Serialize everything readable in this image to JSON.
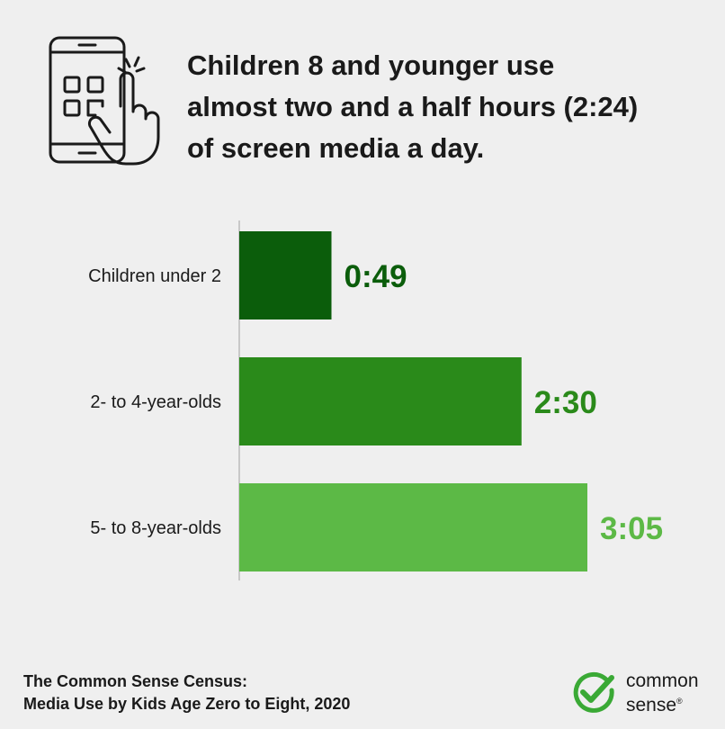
{
  "header": {
    "icon": "tablet-touch-icon",
    "headline": [
      "Children 8 and younger use",
      "almost two and a half hours (2:24)",
      "of screen media a day."
    ]
  },
  "chart_data": {
    "type": "bar",
    "orientation": "horizontal",
    "title": "Children 8 and younger use almost two and a half hours (2:24) of screen media a day.",
    "unit": "hours:minutes per day",
    "categories": [
      "Children under 2",
      "2- to 4-year-olds",
      "5- to 8-year-olds"
    ],
    "values_minutes": [
      49,
      150,
      185
    ],
    "data_labels": [
      "0:49",
      "2:30",
      "3:05"
    ],
    "bar_colors": [
      "#0b5d0b",
      "#2a8a1a",
      "#5cb946"
    ],
    "label_colors": [
      "#0b5d0b",
      "#2a8a1a",
      "#5cb946"
    ],
    "xlim_minutes": [
      0,
      185
    ],
    "grid": false,
    "legend": "none"
  },
  "footer": {
    "source": [
      "The Common Sense Census:",
      "Media Use by Kids Age Zero to Eight, 2020"
    ],
    "logo": {
      "icon": "checkmark-circle-icon",
      "color": "#3aa935",
      "lines": [
        "common",
        "sense"
      ],
      "mark": "®"
    }
  }
}
